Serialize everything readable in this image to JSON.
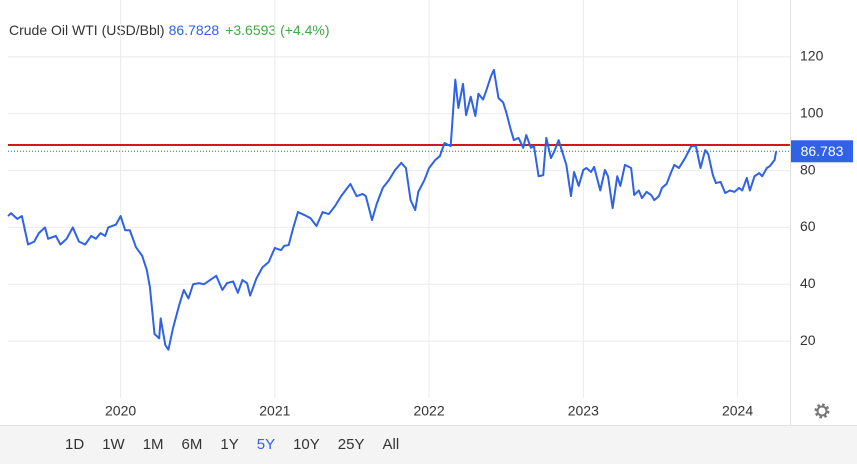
{
  "chart_data": {
    "type": "line",
    "title": "Crude Oil WTI (USD/Bbl)",
    "price": "86.7828",
    "change": "+3.6593 (+4.4%)",
    "last_value": 86.783,
    "reference_line": 89,
    "ranges": [
      "1D",
      "1W",
      "1M",
      "6M",
      "1Y",
      "5Y",
      "10Y",
      "25Y",
      "All"
    ],
    "selected_range": "5Y",
    "xlim": [
      2019.27,
      2024.34
    ],
    "xticks": [
      2020,
      2021,
      2022,
      2023,
      2024
    ],
    "ylim": [
      0,
      140
    ],
    "yticks": [
      20,
      40,
      60,
      80,
      100,
      120
    ],
    "grid": true,
    "x": [
      2019.27,
      2019.29,
      2019.33,
      2019.36,
      2019.4,
      2019.44,
      2019.47,
      2019.51,
      2019.53,
      2019.58,
      2019.61,
      2019.65,
      2019.69,
      2019.73,
      2019.77,
      2019.81,
      2019.84,
      2019.87,
      2019.9,
      2019.92,
      2019.97,
      2020.0,
      2020.03,
      2020.06,
      2020.1,
      2020.14,
      2020.17,
      2020.19,
      2020.22,
      2020.25,
      2020.26,
      2020.29,
      2020.31,
      2020.34,
      2020.38,
      2020.41,
      2020.44,
      2020.47,
      2020.51,
      2020.54,
      2020.58,
      2020.62,
      2020.66,
      2020.69,
      2020.73,
      2020.76,
      2020.79,
      2020.82,
      2020.84,
      2020.88,
      2020.92,
      2020.96,
      2021.0,
      2021.04,
      2021.06,
      2021.09,
      2021.12,
      2021.15,
      2021.19,
      2021.23,
      2021.27,
      2021.31,
      2021.35,
      2021.39,
      2021.43,
      2021.47,
      2021.49,
      2021.53,
      2021.57,
      2021.59,
      2021.63,
      2021.66,
      2021.7,
      2021.74,
      2021.78,
      2021.82,
      2021.85,
      2021.88,
      2021.91,
      2021.93,
      2021.97,
      2022.0,
      2022.04,
      2022.07,
      2022.1,
      2022.14,
      2022.17,
      2022.19,
      2022.22,
      2022.24,
      2022.27,
      2022.3,
      2022.32,
      2022.35,
      2022.37,
      2022.4,
      2022.42,
      2022.45,
      2022.48,
      2022.5,
      2022.53,
      2022.55,
      2022.58,
      2022.61,
      2022.63,
      2022.66,
      2022.68,
      2022.71,
      2022.74,
      2022.76,
      2022.79,
      2022.81,
      2022.84,
      2022.87,
      2022.89,
      2022.92,
      2022.94,
      2022.97,
      2023.0,
      2023.02,
      2023.05,
      2023.07,
      2023.11,
      2023.14,
      2023.16,
      2023.19,
      2023.22,
      2023.24,
      2023.27,
      2023.31,
      2023.33,
      2023.36,
      2023.38,
      2023.41,
      2023.44,
      2023.46,
      2023.49,
      2023.51,
      2023.54,
      2023.57,
      2023.59,
      2023.62,
      2023.66,
      2023.7,
      2023.73,
      2023.76,
      2023.79,
      2023.81,
      2023.84,
      2023.86,
      2023.89,
      2023.92,
      2023.95,
      2023.98,
      2024.01,
      2024.03,
      2024.06,
      2024.08,
      2024.11,
      2024.14,
      2024.16,
      2024.19,
      2024.21,
      2024.24,
      2024.25
    ],
    "series": [
      {
        "name": "Crude Oil WTI (USD/Bbl)",
        "color": "#2f62e6",
        "values": [
          64,
          65,
          63,
          64,
          54,
          55,
          58,
          60,
          56,
          57,
          54,
          56,
          60,
          55,
          54,
          57,
          56,
          58,
          57,
          60,
          61,
          64,
          59,
          59,
          53,
          50,
          45,
          39,
          22.5,
          21,
          28,
          18.6,
          17,
          24.6,
          32.7,
          38,
          35,
          40,
          40.4,
          40,
          41.5,
          43,
          38,
          40.4,
          41,
          37,
          41.5,
          40.4,
          36,
          42,
          46,
          47.8,
          52.8,
          52,
          53.5,
          53.8,
          60,
          65.4,
          64.4,
          63.3,
          60.5,
          65.4,
          64.7,
          67.5,
          71,
          73.9,
          75.3,
          71,
          71.8,
          71,
          62.6,
          68.2,
          73.9,
          76.7,
          80.2,
          82.7,
          80.9,
          69.6,
          66.1,
          72.5,
          76.7,
          80.9,
          83.7,
          85.1,
          89.7,
          88.6,
          112,
          102,
          110.5,
          99.5,
          106,
          99.2,
          107,
          105,
          108,
          113,
          115.4,
          105.5,
          104,
          100.6,
          94.3,
          90.7,
          91.5,
          88,
          92.5,
          88,
          88.6,
          78,
          78.4,
          91.5,
          84.4,
          86.5,
          90.7,
          85.5,
          82,
          71,
          79.5,
          74.6,
          80.2,
          80.9,
          79.5,
          81.3,
          73,
          80.2,
          78,
          66.8,
          78,
          74.6,
          82,
          80.9,
          71.4,
          73,
          70.3,
          72.5,
          71.4,
          69.6,
          71,
          73.9,
          75.3,
          79.5,
          82,
          80.9,
          84.4,
          88.6,
          88.6,
          80.9,
          87.2,
          85.8,
          78.4,
          75.6,
          76,
          72.1,
          73,
          72.5,
          73.9,
          73,
          77.4,
          73,
          78,
          79.1,
          78,
          80.9,
          81.6,
          83.7,
          86.78
        ]
      }
    ]
  }
}
